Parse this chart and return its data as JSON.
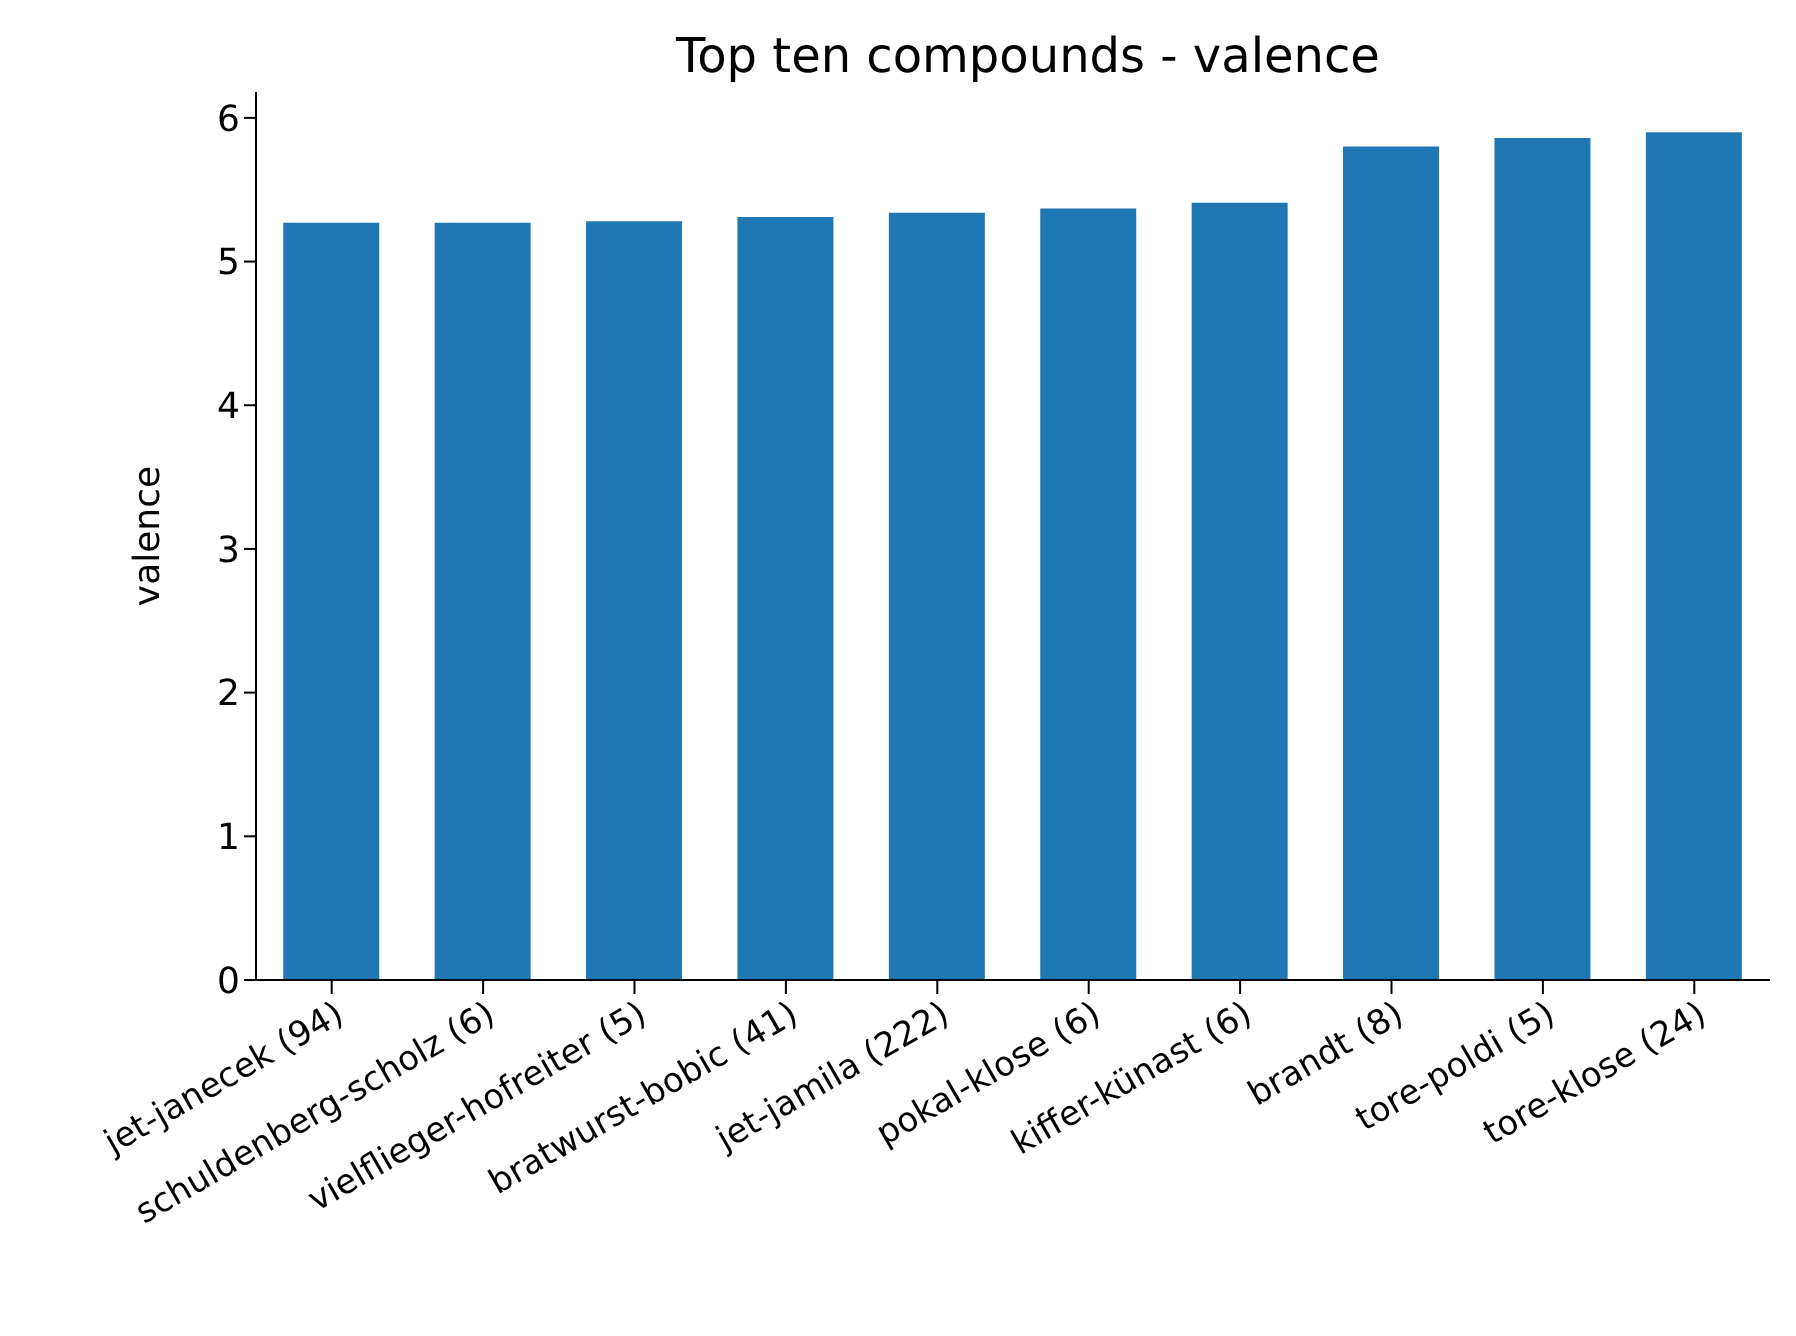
{
  "chart_data": {
    "type": "bar",
    "title": "Top ten compounds - valence",
    "ylabel": "valence",
    "categories": [
      "jet-janecek  (94)",
      "schuldenberg-scholz (6)",
      "vielflieger-hofreiter (5)",
      "bratwurst-bobic (41)",
      "jet-jamila (222)",
      "pokal-klose (6)",
      "kiffer-künast (6)",
      "brandt (8)",
      "tore-poldi (5)",
      "tore-klose (24)"
    ],
    "values": [
      5.27,
      5.27,
      5.28,
      5.31,
      5.34,
      5.37,
      5.41,
      5.8,
      5.86,
      5.9
    ],
    "color": "#1f77b4",
    "ylim": [
      0,
      6.18
    ],
    "yticks": [
      0,
      1,
      2,
      3,
      4,
      5,
      6
    ],
    "grid": false,
    "legend": false
  }
}
